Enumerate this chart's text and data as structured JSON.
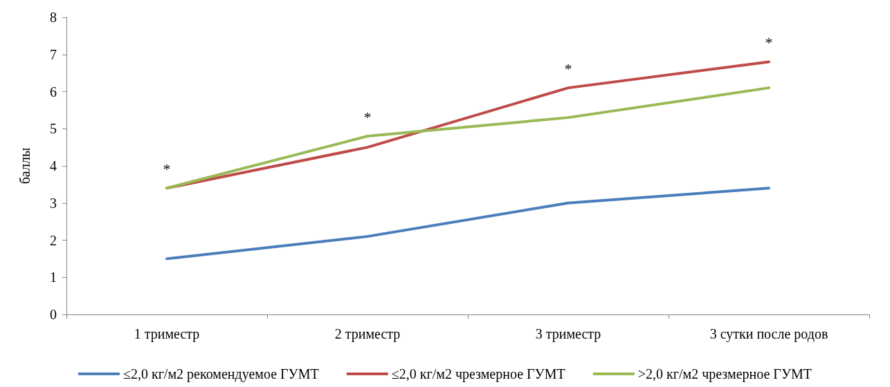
{
  "chart_data": {
    "type": "line",
    "ylabel": "баллы",
    "categories": [
      "1 триместр",
      "2 триместр",
      "3 триместр",
      "3 сутки после родов"
    ],
    "series": [
      {
        "name": "≤2,0 кг/м2 рекомендуемое ГУМТ",
        "color": "#4a7ebb",
        "values": [
          1.5,
          2.1,
          3.0,
          3.4
        ]
      },
      {
        "name": "≤2,0 кг/м2 чрезмерное ГУМТ",
        "color": "#be4b48",
        "values": [
          3.4,
          4.5,
          6.1,
          6.8
        ]
      },
      {
        "name": ">2,0 кг/м2 чрезмерное ГУМТ",
        "color": "#98b954",
        "values": [
          3.4,
          4.8,
          5.3,
          6.1
        ]
      }
    ],
    "ylim": [
      0,
      8
    ],
    "yticks": [
      0,
      1,
      2,
      3,
      4,
      5,
      6,
      7,
      8
    ],
    "grid": false,
    "legend": "bottom",
    "marker": "none",
    "line_style": "solid",
    "annotations": [
      "*",
      "*",
      "*",
      "*"
    ]
  }
}
